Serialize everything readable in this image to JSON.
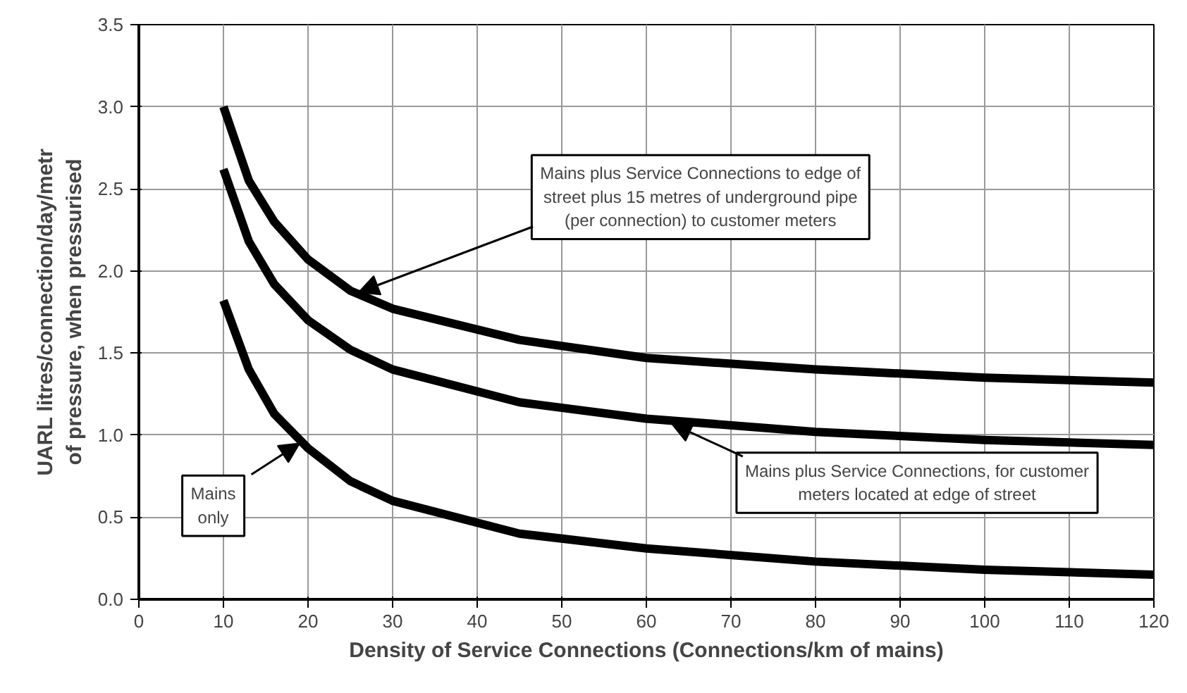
{
  "chart_data": {
    "type": "line",
    "xlabel": "Density of Service Connections (Connections/km of mains)",
    "ylabel": "UARL litres/connection/day/metr\nof pressure, when pressurised",
    "xlim": [
      0,
      120
    ],
    "xticks": [
      0,
      10,
      20,
      30,
      40,
      50,
      60,
      70,
      80,
      90,
      100,
      110,
      120
    ],
    "ylim": [
      0,
      3.5
    ],
    "yticks": [
      {
        "value": 0,
        "label": "0.0"
      },
      {
        "value": 0.5,
        "label": "0.5"
      },
      {
        "value": 1,
        "label": "1.0"
      },
      {
        "value": 1.5,
        "label": "1.5"
      },
      {
        "value": 2,
        "label": "2.0"
      },
      {
        "value": 2.5,
        "label": "2.5"
      },
      {
        "value": 3,
        "label": "3.0"
      },
      {
        "value": 3.5,
        "label": "3.5"
      }
    ],
    "grid": true,
    "marker": "none",
    "line_style": "solid",
    "x": [
      10,
      13,
      16,
      20,
      25,
      30,
      45,
      60,
      80,
      100,
      120
    ],
    "series": [
      {
        "color": "#000000",
        "values": [
          3.0,
          2.55,
          2.3,
          2.07,
          1.88,
          1.77,
          1.58,
          1.47,
          1.4,
          1.35,
          1.32
        ]
      },
      {
        "color": "#000000",
        "values": [
          2.62,
          2.18,
          1.92,
          1.7,
          1.52,
          1.4,
          1.2,
          1.1,
          1.02,
          0.97,
          0.94
        ]
      },
      {
        "color": "#000000",
        "values": [
          1.82,
          1.4,
          1.13,
          0.92,
          0.72,
          0.6,
          0.4,
          0.31,
          0.23,
          0.18,
          0.15
        ]
      }
    ],
    "annotations": [
      {
        "text": "Mains plus Service Connections to edge of\nstreet plus 15 metres of underground pipe\n(per connection) to customer meters",
        "x": 26,
        "y": 1.87
      },
      {
        "text": "Mains plus Service Connections, for customer\nmeters located at edge of street",
        "x": 63,
        "y": 1.07
      },
      {
        "text": "Mains\nonly",
        "x": 19,
        "y": 0.95
      }
    ]
  }
}
